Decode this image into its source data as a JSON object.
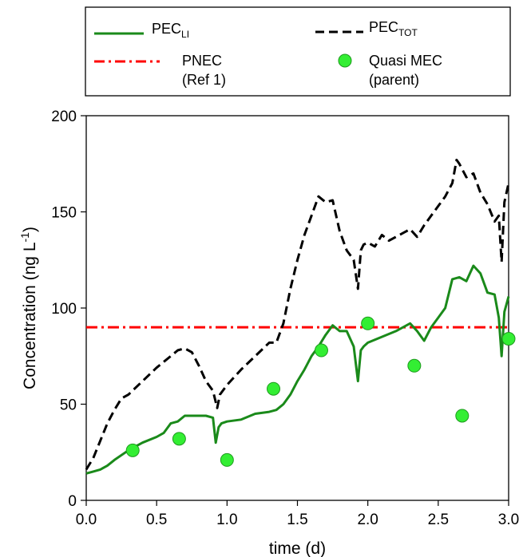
{
  "chart_data": {
    "type": "line",
    "xlabel": "time (d)",
    "ylabel": "Concentration (ng L",
    "ylabel_sup": "-1",
    "ylabel_close": ")",
    "xlim": [
      0,
      3
    ],
    "ylim": [
      0,
      200
    ],
    "x_ticks": [
      0,
      0.5,
      1,
      1.5,
      2,
      2.5,
      3
    ],
    "x_tick_labels": [
      "0.0",
      "0.5",
      "1.0",
      "1.5",
      "2.0",
      "2.5",
      "3.0"
    ],
    "y_ticks": [
      0,
      50,
      100,
      150,
      200
    ],
    "y_tick_labels": [
      "0",
      "50",
      "100",
      "150",
      "200"
    ],
    "grid": false,
    "legend_position": "top (above plot)",
    "series": [
      {
        "name": "PEC",
        "name_sub": "LI",
        "style": "solid",
        "color": "#1a8a1a",
        "x": [
          0.0,
          0.05,
          0.1,
          0.15,
          0.2,
          0.3,
          0.4,
          0.5,
          0.55,
          0.6,
          0.65,
          0.7,
          0.75,
          0.8,
          0.85,
          0.9,
          0.92,
          0.94,
          0.96,
          1.0,
          1.1,
          1.2,
          1.3,
          1.35,
          1.4,
          1.45,
          1.5,
          1.55,
          1.6,
          1.65,
          1.7,
          1.75,
          1.8,
          1.85,
          1.9,
          1.93,
          1.95,
          1.97,
          2.0,
          2.1,
          2.2,
          2.3,
          2.35,
          2.4,
          2.45,
          2.5,
          2.55,
          2.6,
          2.65,
          2.7,
          2.75,
          2.8,
          2.85,
          2.9,
          2.93,
          2.95,
          2.97,
          3.0
        ],
        "y": [
          14,
          15,
          16,
          18,
          21,
          26,
          30,
          33,
          35,
          40,
          41,
          44,
          44,
          44,
          44,
          43,
          30,
          38,
          40,
          41,
          42,
          45,
          46,
          47,
          50,
          55,
          62,
          68,
          75,
          80,
          86,
          91,
          88,
          88,
          80,
          62,
          78,
          80,
          82,
          85,
          88,
          92,
          88,
          83,
          90,
          95,
          100,
          115,
          116,
          114,
          122,
          118,
          108,
          107,
          95,
          75,
          98,
          106
        ]
      },
      {
        "name": "PEC",
        "name_sub": "TOT",
        "style": "dashed",
        "color": "#000000",
        "x": [
          0.0,
          0.05,
          0.1,
          0.15,
          0.2,
          0.25,
          0.3,
          0.4,
          0.5,
          0.55,
          0.6,
          0.65,
          0.7,
          0.75,
          0.8,
          0.85,
          0.9,
          0.93,
          0.95,
          1.0,
          1.1,
          1.2,
          1.3,
          1.35,
          1.4,
          1.45,
          1.5,
          1.55,
          1.6,
          1.65,
          1.7,
          1.75,
          1.8,
          1.85,
          1.9,
          1.93,
          1.95,
          1.97,
          2.0,
          2.05,
          2.1,
          2.15,
          2.2,
          2.3,
          2.35,
          2.4,
          2.45,
          2.5,
          2.55,
          2.6,
          2.63,
          2.65,
          2.7,
          2.75,
          2.8,
          2.85,
          2.9,
          2.93,
          2.95,
          2.97,
          3.0
        ],
        "y": [
          16,
          22,
          31,
          40,
          47,
          53,
          55,
          62,
          69,
          72,
          75,
          78,
          79,
          77,
          70,
          62,
          57,
          48,
          55,
          60,
          68,
          75,
          82,
          82,
          92,
          110,
          125,
          138,
          148,
          158,
          155,
          156,
          140,
          130,
          125,
          110,
          130,
          133,
          134,
          132,
          138,
          135,
          137,
          141,
          137,
          143,
          148,
          153,
          158,
          165,
          177,
          175,
          168,
          170,
          160,
          154,
          145,
          148,
          124,
          155,
          165
        ]
      },
      {
        "name": "PNEC",
        "name_line2": "(Ref 1)",
        "style": "dash-dot",
        "color": "#ff0000",
        "x": [
          0,
          3
        ],
        "y": [
          90,
          90
        ]
      }
    ],
    "points": {
      "name": "Quasi MEC",
      "name_line2": "(parent)",
      "color": "#33ee33",
      "x": [
        0.33,
        0.66,
        1.0,
        1.33,
        1.67,
        2.0,
        2.33,
        2.67,
        3.0
      ],
      "y": [
        26,
        32,
        21,
        58,
        78,
        92,
        70,
        44,
        84
      ]
    }
  }
}
